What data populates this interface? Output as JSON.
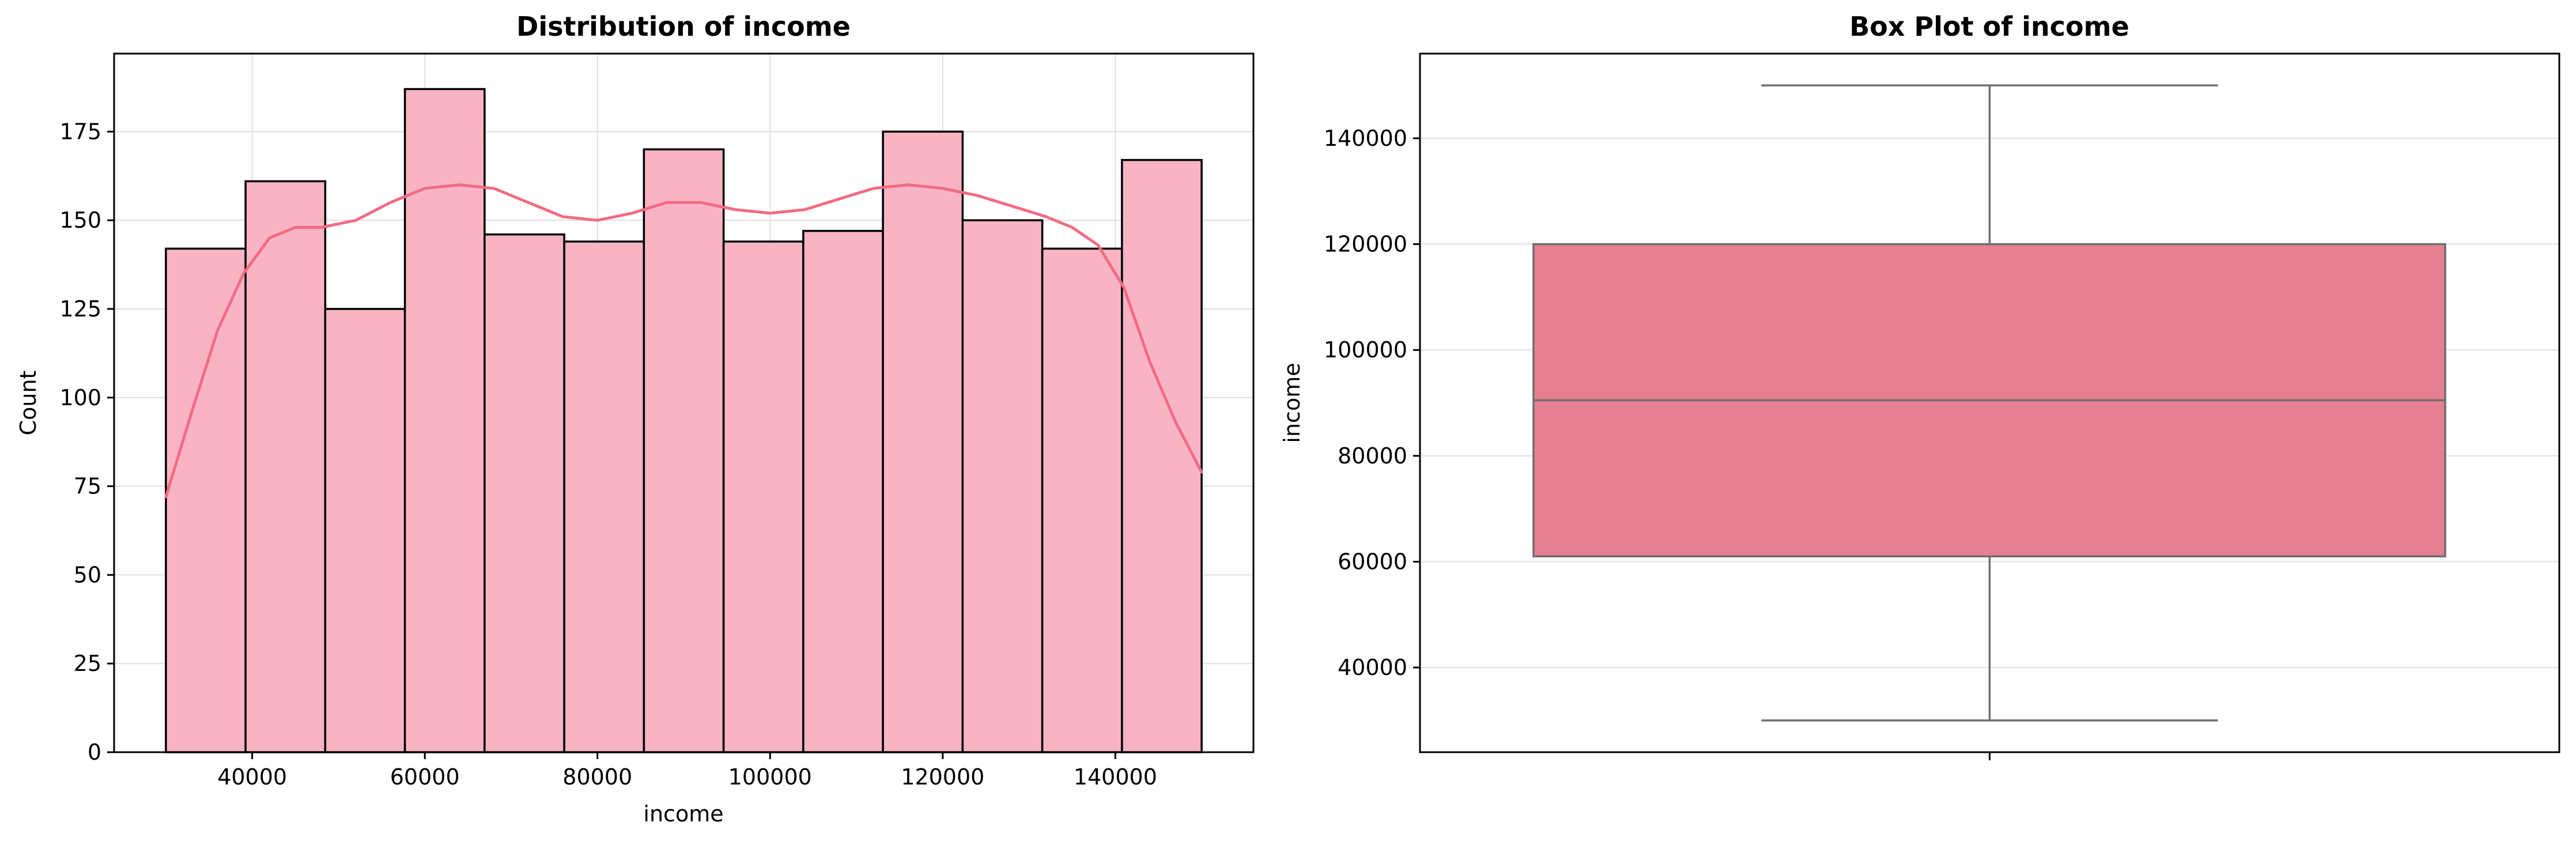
{
  "colors": {
    "hist_fill": "#f9b4c4",
    "hist_edge": "#000000",
    "kde_line": "#f26b82",
    "box_fill": "#e67f92",
    "box_line": "#6e6e6e",
    "grid": "#e0e0e0"
  },
  "chart_data": [
    {
      "type": "histogram",
      "title": "Distribution of income",
      "xlabel": "income",
      "ylabel": "Count",
      "xlim": [
        24000,
        156000
      ],
      "ylim": [
        0,
        197
      ],
      "xticks": [
        40000,
        60000,
        80000,
        100000,
        120000,
        140000
      ],
      "yticks": [
        0,
        25,
        50,
        75,
        100,
        125,
        150,
        175
      ],
      "grid": true,
      "bin_range": [
        30000,
        150000
      ],
      "counts": [
        142,
        161,
        125,
        187,
        146,
        144,
        170,
        144,
        147,
        175,
        150,
        142,
        167
      ],
      "kde": {
        "x": [
          30000,
          33000,
          36000,
          39000,
          42000,
          45000,
          48000,
          52000,
          56000,
          60000,
          64000,
          68000,
          72000,
          76000,
          80000,
          84000,
          88000,
          92000,
          96000,
          100000,
          104000,
          108000,
          112000,
          116000,
          120000,
          124000,
          128000,
          132000,
          135000,
          138000,
          141000,
          144000,
          147000,
          150000
        ],
        "y": [
          72,
          96,
          119,
          135,
          145,
          148,
          148,
          150,
          155,
          159,
          160,
          159,
          155,
          151,
          150,
          152,
          155,
          155,
          153,
          152,
          153,
          156,
          159,
          160,
          159,
          157,
          154,
          151,
          148,
          143,
          131,
          110,
          93,
          79
        ]
      }
    },
    {
      "type": "box",
      "title": "Box Plot of income",
      "xlabel": "",
      "ylabel": "income",
      "ylim": [
        24000,
        156000
      ],
      "yticks": [
        40000,
        60000,
        80000,
        100000,
        120000,
        140000
      ],
      "grid": true,
      "box": {
        "whisker_low": 30000,
        "q1": 61000,
        "median": 90500,
        "q3": 120000,
        "whisker_high": 150000
      }
    }
  ]
}
